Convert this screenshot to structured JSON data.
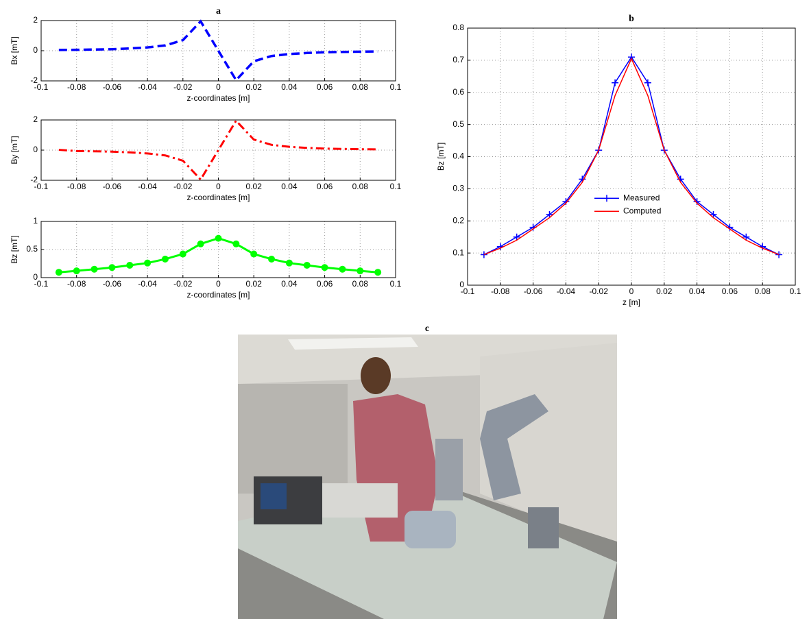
{
  "chart_data": [
    {
      "type": "line",
      "title": "a",
      "x_label": "z-coordinates [m]",
      "y_label": "Bx [mT]",
      "x": [
        -0.09,
        -0.08,
        -0.07,
        -0.06,
        -0.05,
        -0.04,
        -0.03,
        -0.02,
        -0.01,
        0,
        0.01,
        0.02,
        0.03,
        0.04,
        0.05,
        0.06,
        0.07,
        0.08,
        0.09
      ],
      "series": [
        {
          "color": "#0000ff",
          "line_style": "dashed",
          "values": [
            0.05,
            0.06,
            0.08,
            0.1,
            0.15,
            0.22,
            0.35,
            0.7,
            1.95,
            0,
            -1.95,
            -0.7,
            -0.35,
            -0.22,
            -0.15,
            -0.1,
            -0.08,
            -0.06,
            -0.05
          ]
        }
      ],
      "xlim": [
        -0.1,
        0.1
      ],
      "xticks": [
        -0.1,
        -0.08,
        -0.06,
        -0.04,
        -0.02,
        0,
        0.02,
        0.04,
        0.06,
        0.08,
        0.1
      ],
      "ylim": [
        -2,
        2
      ],
      "yticks": [
        -2,
        0,
        2
      ],
      "grid": true
    },
    {
      "type": "line",
      "x_label": "z-coordinates [m]",
      "y_label": "By [mT]",
      "x": [
        -0.09,
        -0.08,
        -0.07,
        -0.06,
        -0.05,
        -0.04,
        -0.03,
        -0.02,
        -0.01,
        0,
        0.01,
        0.02,
        0.03,
        0.04,
        0.05,
        0.06,
        0.07,
        0.08,
        0.09
      ],
      "series": [
        {
          "color": "#ff0000",
          "line_style": "dashdot",
          "values": [
            0.02,
            -0.06,
            -0.08,
            -0.1,
            -0.15,
            -0.22,
            -0.35,
            -0.7,
            -1.95,
            0,
            1.95,
            0.7,
            0.35,
            0.22,
            0.15,
            0.1,
            0.08,
            0.06,
            0.05
          ]
        }
      ],
      "xlim": [
        -0.1,
        0.1
      ],
      "xticks": [
        -0.1,
        -0.08,
        -0.06,
        -0.04,
        -0.02,
        0,
        0.02,
        0.04,
        0.06,
        0.08,
        0.1
      ],
      "ylim": [
        -2,
        2
      ],
      "yticks": [
        -2,
        0,
        2
      ],
      "grid": true
    },
    {
      "type": "line",
      "x_label": "z-coordinates [m]",
      "y_label": "Bz [mT]",
      "x": [
        -0.09,
        -0.08,
        -0.07,
        -0.06,
        -0.05,
        -0.04,
        -0.03,
        -0.02,
        -0.01,
        0,
        0.01,
        0.02,
        0.03,
        0.04,
        0.05,
        0.06,
        0.07,
        0.08,
        0.09
      ],
      "series": [
        {
          "color": "#00ff00",
          "line_style": "solid",
          "marker": "circle",
          "values": [
            0.095,
            0.12,
            0.15,
            0.18,
            0.22,
            0.26,
            0.33,
            0.42,
            0.6,
            0.7,
            0.6,
            0.42,
            0.33,
            0.26,
            0.22,
            0.18,
            0.15,
            0.12,
            0.095
          ]
        }
      ],
      "xlim": [
        -0.1,
        0.1
      ],
      "xticks": [
        -0.1,
        -0.08,
        -0.06,
        -0.04,
        -0.02,
        0,
        0.02,
        0.04,
        0.06,
        0.08,
        0.1
      ],
      "ylim": [
        0,
        1
      ],
      "yticks": [
        0,
        0.5,
        1
      ],
      "grid": true
    },
    {
      "type": "line",
      "title": "b",
      "x_label": "z [m]",
      "y_label": "Bz [mT]",
      "x": [
        -0.09,
        -0.08,
        -0.07,
        -0.06,
        -0.05,
        -0.04,
        -0.03,
        -0.02,
        -0.01,
        0,
        0.01,
        0.02,
        0.03,
        0.04,
        0.05,
        0.06,
        0.07,
        0.08,
        0.09
      ],
      "series": [
        {
          "name": "Measured",
          "color": "#0000ff",
          "line_style": "solid",
          "marker": "plus",
          "values": [
            0.095,
            0.12,
            0.15,
            0.18,
            0.22,
            0.26,
            0.33,
            0.42,
            0.63,
            0.71,
            0.63,
            0.42,
            0.33,
            0.26,
            0.22,
            0.18,
            0.15,
            0.12,
            0.095
          ]
        },
        {
          "name": "Computed",
          "color": "#ff0000",
          "line_style": "solid",
          "values": [
            0.095,
            0.115,
            0.14,
            0.175,
            0.21,
            0.255,
            0.32,
            0.42,
            0.59,
            0.705,
            0.59,
            0.42,
            0.32,
            0.255,
            0.21,
            0.175,
            0.14,
            0.115,
            0.095
          ]
        }
      ],
      "xlim": [
        -0.1,
        0.1
      ],
      "xticks": [
        -0.1,
        -0.08,
        -0.06,
        -0.04,
        -0.02,
        0,
        0.02,
        0.04,
        0.06,
        0.08,
        0.1
      ],
      "ylim": [
        0,
        0.8
      ],
      "yticks": [
        0,
        0.1,
        0.2,
        0.3,
        0.4,
        0.5,
        0.6,
        0.7,
        0.8
      ],
      "grid": true,
      "legend": "center"
    }
  ],
  "photo_panel": {
    "title": "c"
  }
}
